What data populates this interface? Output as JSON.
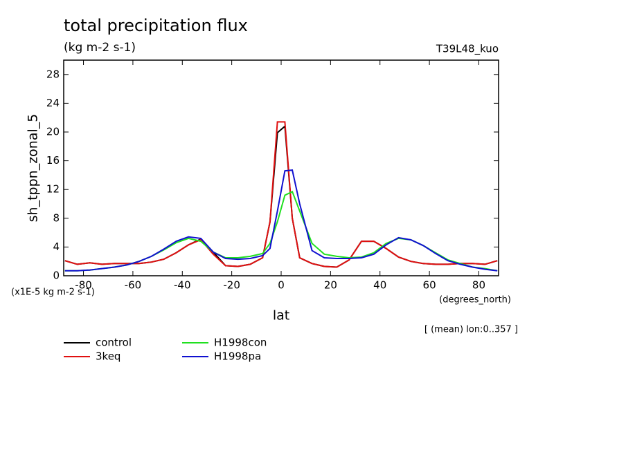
{
  "chart_data": {
    "type": "line",
    "title": "total precipitation flux",
    "subtitle": "(kg m-2 s-1)",
    "annotation_right": "T39L48_kuo",
    "y_label": "sh_tppn_zonal_5",
    "y_units": "(x1E-5 kg m-2 s-1)",
    "x_label": "lat",
    "x_units": "(degrees_north)",
    "footnote": "[ (mean) lon:0..357 ]",
    "x": [
      -87.5,
      -82.5,
      -77.5,
      -72.5,
      -67.5,
      -62.5,
      -57.5,
      -52.5,
      -47.5,
      -42.5,
      -37.5,
      -32.5,
      -27.5,
      -22.5,
      -17.5,
      -12.5,
      -7.5,
      -4.5,
      -1.5,
      1.5,
      4.5,
      7.5,
      12.5,
      17.5,
      22.5,
      27.5,
      32.5,
      37.5,
      42.5,
      47.5,
      52.5,
      57.5,
      62.5,
      67.5,
      72.5,
      77.5,
      82.5,
      87.5
    ],
    "series": [
      {
        "name": "control",
        "color": "#000000",
        "values": [
          2.1,
          1.6,
          1.8,
          1.6,
          1.7,
          1.7,
          1.7,
          1.9,
          2.3,
          3.2,
          4.3,
          5.1,
          3.3,
          1.4,
          1.3,
          1.6,
          2.5,
          7.5,
          19.9,
          20.8,
          8.0,
          2.5,
          1.7,
          1.3,
          1.2,
          2.2,
          4.8,
          4.8,
          3.8,
          2.6,
          2.0,
          1.7,
          1.6,
          1.6,
          1.7,
          1.7,
          1.6,
          2.1
        ]
      },
      {
        "name": "3keq",
        "color": "#e01010",
        "values": [
          2.1,
          1.6,
          1.8,
          1.6,
          1.7,
          1.7,
          1.7,
          1.9,
          2.3,
          3.2,
          4.3,
          5.0,
          3.0,
          1.4,
          1.3,
          1.6,
          2.5,
          7.5,
          21.4,
          21.4,
          8.0,
          2.5,
          1.7,
          1.3,
          1.2,
          2.2,
          4.8,
          4.8,
          3.8,
          2.6,
          2.0,
          1.7,
          1.6,
          1.6,
          1.7,
          1.7,
          1.6,
          2.1
        ]
      },
      {
        "name": "H1998con",
        "color": "#20e020",
        "values": [
          0.7,
          0.7,
          0.8,
          1.0,
          1.2,
          1.5,
          2.0,
          2.7,
          3.6,
          4.6,
          5.2,
          4.8,
          3.3,
          2.5,
          2.5,
          2.7,
          3.1,
          4.5,
          7.5,
          11.2,
          11.7,
          9.0,
          4.5,
          3.0,
          2.7,
          2.5,
          2.6,
          3.2,
          4.5,
          5.2,
          5.0,
          4.2,
          3.2,
          2.2,
          1.7,
          1.2,
          1.0,
          0.7
        ]
      },
      {
        "name": "H1998pa",
        "color": "#1010d0",
        "values": [
          0.7,
          0.7,
          0.8,
          1.0,
          1.2,
          1.5,
          2.0,
          2.7,
          3.7,
          4.8,
          5.4,
          5.2,
          3.3,
          2.4,
          2.3,
          2.4,
          2.8,
          3.8,
          9.0,
          14.6,
          14.7,
          10.0,
          3.5,
          2.5,
          2.4,
          2.4,
          2.5,
          3.0,
          4.3,
          5.3,
          5.0,
          4.2,
          3.1,
          2.1,
          1.6,
          1.2,
          0.9,
          0.7
        ]
      }
    ],
    "xlim": [
      -88,
      88
    ],
    "ylim": [
      0,
      30
    ],
    "xticks": [
      -80,
      -60,
      -40,
      -20,
      0,
      20,
      40,
      60,
      80
    ],
    "yticks": [
      0,
      4,
      8,
      12,
      16,
      20,
      24,
      28
    ]
  }
}
